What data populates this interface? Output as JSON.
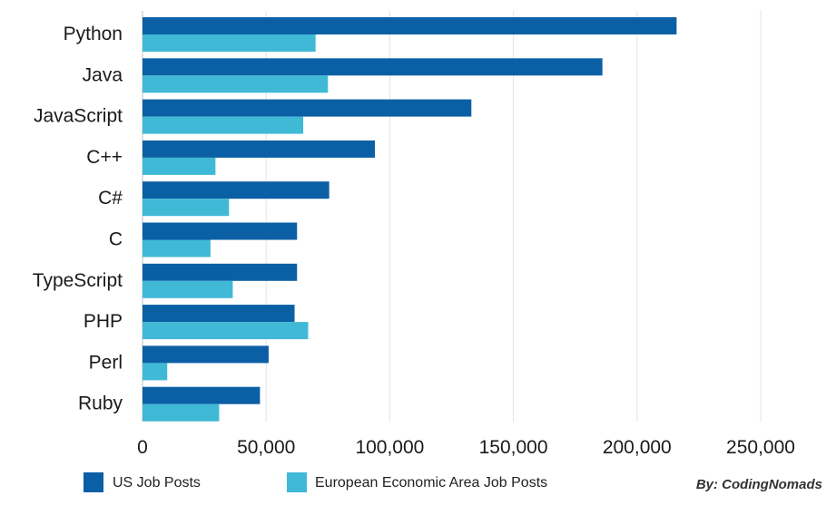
{
  "chart_data": {
    "type": "bar",
    "orientation": "horizontal",
    "categories": [
      "Python",
      "Java",
      "JavaScript",
      "C++",
      "C#",
      "C",
      "TypeScript",
      "PHP",
      "Perl",
      "Ruby"
    ],
    "series": [
      {
        "name": "US Job Posts",
        "color": "#0b5fa5",
        "values": [
          216000,
          186000,
          133000,
          94000,
          75500,
          62500,
          62500,
          61500,
          51000,
          47500
        ]
      },
      {
        "name": "European Economic Area Job Posts",
        "color": "#40b9d6",
        "values": [
          70000,
          75000,
          65000,
          29500,
          35000,
          27500,
          36500,
          67000,
          10000,
          31000
        ]
      }
    ],
    "xlim": [
      0,
      250000
    ],
    "xticks": [
      0,
      50000,
      100000,
      150000,
      200000,
      250000
    ],
    "xtick_labels": [
      "0",
      "50,000",
      "100,000",
      "150,000",
      "200,000",
      "250,000"
    ],
    "grid": "vertical",
    "legend_position": "bottom-left"
  },
  "credit": "By: CodingNomads"
}
